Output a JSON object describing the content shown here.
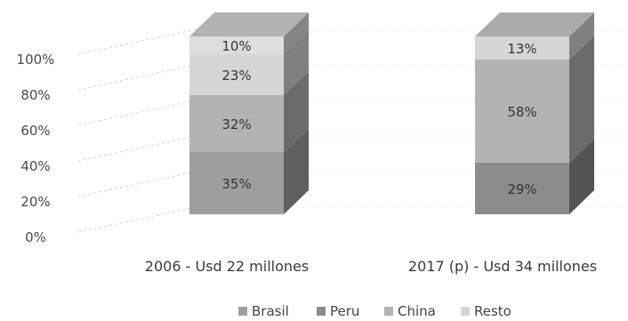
{
  "chart_data": {
    "type": "bar",
    "stacked": true,
    "three_d": true,
    "percent_stacked": true,
    "title": "",
    "xlabel": "",
    "ylabel": "",
    "ylim": [
      0,
      100
    ],
    "yticks": [
      "0%",
      "20%",
      "40%",
      "60%",
      "80%",
      "100%"
    ],
    "categories": [
      "2006 - Usd 22 millones",
      "2017 (p) -  Usd 34 millones"
    ],
    "series": [
      {
        "name": "Brasil",
        "values": [
          35,
          0
        ],
        "labels": [
          "35%",
          ""
        ],
        "color": "#9e9e9e"
      },
      {
        "name": "Peru",
        "values": [
          0,
          29
        ],
        "labels": [
          "",
          "29%"
        ],
        "color": "#8c8c8c"
      },
      {
        "name": "China",
        "values": [
          32,
          58
        ],
        "labels": [
          "32%",
          "58%"
        ],
        "color": "#b3b3b3"
      },
      {
        "name": "Resto",
        "values": [
          23,
          13
        ],
        "labels": [
          "23%",
          "13%"
        ],
        "color": "#d6d6d6"
      }
    ],
    "extra_segments": [
      {
        "category_index": 0,
        "value": 10,
        "label": "10%",
        "color": "#dedede"
      }
    ],
    "legend": {
      "position": "bottom",
      "items": [
        "Brasil",
        "Peru",
        "China",
        "Resto"
      ]
    },
    "grid": true
  }
}
